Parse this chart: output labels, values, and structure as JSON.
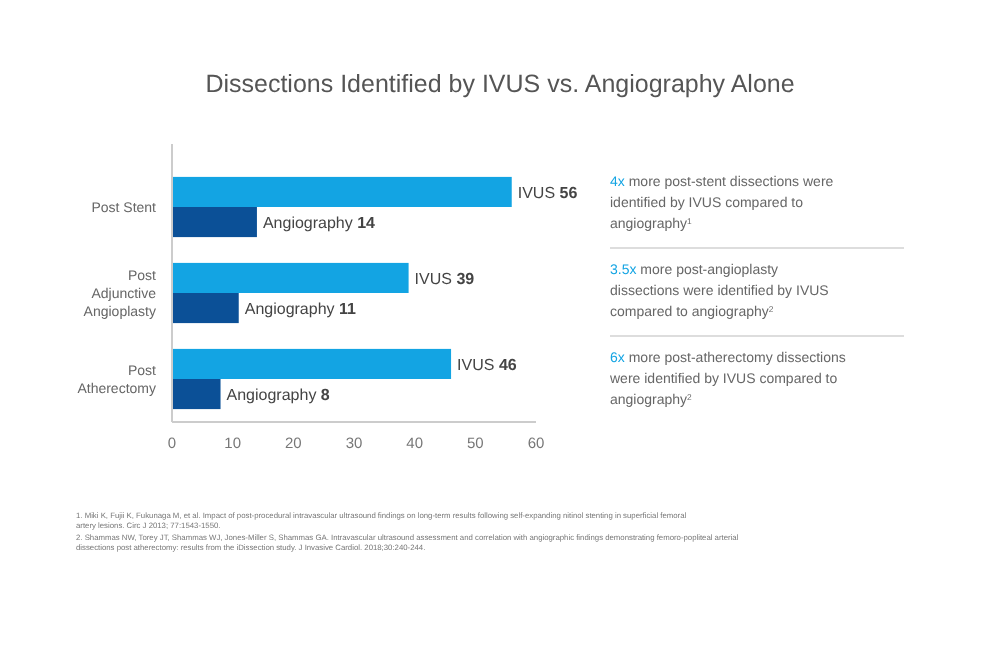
{
  "chart_data": {
    "type": "bar",
    "orientation": "horizontal",
    "title": "Dissections Identified by IVUS vs. Angiography Alone",
    "categories": [
      "Post Stent",
      "Post Adjunctive Angioplasty",
      "Post Atherectomy"
    ],
    "series": [
      {
        "color": "#13a4e3",
        "values": [
          56,
          39,
          46
        ],
        "value_labels": [
          "IVUS 56",
          "IVUS 39",
          "IVUS 46"
        ]
      },
      {
        "color": "#0b5097",
        "values": [
          14,
          11,
          8
        ],
        "value_labels": [
          "Angiography 14",
          "Angiography 11",
          "Angiography 8"
        ]
      }
    ],
    "xlim": [
      0,
      60
    ],
    "xticks": [
      0,
      10,
      20,
      30,
      40,
      50,
      60
    ],
    "annotations": [
      "4x more post-stent dissections were identified by IVUS compared to angiography$^{1}$",
      "3.5x more post-angioplasty dissections were identified by IVUS compared to angiography$^{2}$",
      "6x more post-atherectomy dissections were identified by IVUS compared to angiography$^{2}$",
      "1. Miki K, Fujii K, Fukunaga M, et al. Impact of post-procedural intravascular ultrasound findings on long-term results following self-expanding nitinol stenting in superficial femoral artery lesions. Circ J 2013; 77:1543-1550.",
      "2. Shammas NW, Torey JT, Shammas WJ, Jones-Miller S, Shammas GA. Intravascular ultrasound assessment and correlation with angiographic findings demonstrating femoro-popliteal arterial dissections post atherectomy: results from the iDissection study. J Invasive Cardiol. 2018;30:240-244."
    ]
  }
}
